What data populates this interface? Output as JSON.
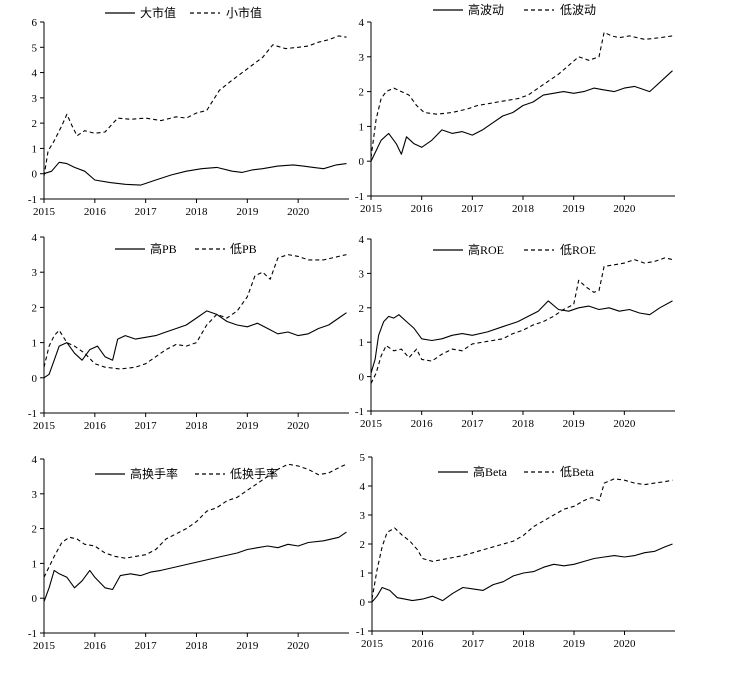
{
  "colors": {
    "line": "#000000",
    "axis": "#000000",
    "background": "#ffffff"
  },
  "chart_data": [
    {
      "type": "line",
      "x_ticks": [
        "2015",
        "2016",
        "2017",
        "2018",
        "2019",
        "2020"
      ],
      "ylim": [
        -1,
        6
      ],
      "y_ticks": [
        "-1",
        "0",
        "1",
        "2",
        "3",
        "4",
        "5",
        "6"
      ],
      "legend_position": "top",
      "series": [
        {
          "name": "大市值",
          "style": "solid",
          "x": [
            2015.0,
            2015.15,
            2015.3,
            2015.45,
            2015.6,
            2015.8,
            2016.0,
            2016.3,
            2016.6,
            2016.9,
            2017.2,
            2017.5,
            2017.8,
            2018.1,
            2018.4,
            2018.7,
            2018.9,
            2019.1,
            2019.3,
            2019.6,
            2019.9,
            2020.1,
            2020.3,
            2020.5,
            2020.75,
            2020.95
          ],
          "values": [
            0.0,
            0.1,
            0.45,
            0.4,
            0.25,
            0.1,
            -0.25,
            -0.35,
            -0.42,
            -0.45,
            -0.25,
            -0.05,
            0.1,
            0.2,
            0.25,
            0.1,
            0.05,
            0.15,
            0.2,
            0.3,
            0.35,
            0.3,
            0.25,
            0.2,
            0.35,
            0.4
          ]
        },
        {
          "name": "小市值",
          "style": "dashed",
          "x": [
            2015.0,
            2015.08,
            2015.2,
            2015.35,
            2015.45,
            2015.55,
            2015.65,
            2015.8,
            2016.0,
            2016.2,
            2016.45,
            2016.7,
            2017.0,
            2017.3,
            2017.6,
            2017.8,
            2018.0,
            2018.2,
            2018.45,
            2018.7,
            2018.9,
            2019.1,
            2019.3,
            2019.5,
            2019.75,
            2020.0,
            2020.2,
            2020.4,
            2020.6,
            2020.8,
            2020.95
          ],
          "values": [
            -0.1,
            0.9,
            1.3,
            1.9,
            2.35,
            1.9,
            1.5,
            1.7,
            1.6,
            1.65,
            2.2,
            2.15,
            2.2,
            2.1,
            2.25,
            2.2,
            2.4,
            2.5,
            3.3,
            3.7,
            4.0,
            4.3,
            4.6,
            5.1,
            4.95,
            5.0,
            5.05,
            5.2,
            5.3,
            5.45,
            5.4
          ]
        }
      ]
    },
    {
      "type": "line",
      "x_ticks": [
        "2015",
        "2016",
        "2017",
        "2018",
        "2019",
        "2020"
      ],
      "ylim": [
        -1,
        4
      ],
      "y_ticks": [
        "-1",
        "0",
        "1",
        "2",
        "3",
        "4"
      ],
      "legend_position": "top",
      "series": [
        {
          "name": "高波动",
          "style": "solid",
          "x": [
            2015.0,
            2015.1,
            2015.2,
            2015.35,
            2015.5,
            2015.6,
            2015.7,
            2015.85,
            2016.0,
            2016.2,
            2016.4,
            2016.6,
            2016.8,
            2017.0,
            2017.2,
            2017.4,
            2017.6,
            2017.8,
            2018.0,
            2018.2,
            2018.4,
            2018.6,
            2018.8,
            2019.0,
            2019.2,
            2019.4,
            2019.6,
            2019.8,
            2020.0,
            2020.2,
            2020.5,
            2020.8,
            2020.95
          ],
          "values": [
            0.0,
            0.3,
            0.6,
            0.8,
            0.5,
            0.2,
            0.7,
            0.5,
            0.4,
            0.6,
            0.9,
            0.8,
            0.85,
            0.75,
            0.9,
            1.1,
            1.3,
            1.4,
            1.6,
            1.7,
            1.9,
            1.95,
            2.0,
            1.95,
            2.0,
            2.1,
            2.05,
            2.0,
            2.1,
            2.15,
            2.0,
            2.4,
            2.6
          ]
        },
        {
          "name": "低波动",
          "style": "dashed",
          "x": [
            2015.0,
            2015.1,
            2015.2,
            2015.3,
            2015.45,
            2015.6,
            2015.75,
            2015.9,
            2016.05,
            2016.3,
            2016.6,
            2016.9,
            2017.1,
            2017.3,
            2017.5,
            2017.7,
            2017.9,
            2018.1,
            2018.3,
            2018.5,
            2018.7,
            2018.9,
            2019.1,
            2019.3,
            2019.5,
            2019.6,
            2019.75,
            2019.9,
            2020.1,
            2020.4,
            2020.7,
            2020.95
          ],
          "values": [
            0.1,
            1.2,
            1.8,
            2.0,
            2.1,
            2.0,
            1.9,
            1.6,
            1.4,
            1.35,
            1.4,
            1.5,
            1.6,
            1.65,
            1.7,
            1.75,
            1.8,
            1.9,
            2.1,
            2.3,
            2.5,
            2.75,
            3.0,
            2.9,
            3.0,
            3.7,
            3.6,
            3.55,
            3.6,
            3.5,
            3.55,
            3.6
          ]
        }
      ]
    },
    {
      "type": "line",
      "x_ticks": [
        "2015",
        "2016",
        "2017",
        "2018",
        "2019",
        "2020"
      ],
      "ylim": [
        -1,
        4
      ],
      "y_ticks": [
        "-1",
        "0",
        "1",
        "2",
        "3",
        "4"
      ],
      "legend_position": "top",
      "series": [
        {
          "name": "高PB",
          "style": "solid",
          "x": [
            2015.0,
            2015.1,
            2015.2,
            2015.3,
            2015.45,
            2015.6,
            2015.75,
            2015.9,
            2016.05,
            2016.2,
            2016.35,
            2016.45,
            2016.6,
            2016.8,
            2017.0,
            2017.2,
            2017.4,
            2017.6,
            2017.8,
            2018.0,
            2018.2,
            2018.4,
            2018.6,
            2018.8,
            2019.0,
            2019.2,
            2019.4,
            2019.6,
            2019.8,
            2020.0,
            2020.2,
            2020.4,
            2020.6,
            2020.8,
            2020.95
          ],
          "values": [
            0.0,
            0.1,
            0.5,
            0.9,
            1.0,
            0.7,
            0.5,
            0.8,
            0.9,
            0.6,
            0.5,
            1.1,
            1.2,
            1.1,
            1.15,
            1.2,
            1.3,
            1.4,
            1.5,
            1.7,
            1.9,
            1.8,
            1.6,
            1.5,
            1.45,
            1.55,
            1.4,
            1.25,
            1.3,
            1.2,
            1.25,
            1.4,
            1.5,
            1.7,
            1.85
          ]
        },
        {
          "name": "低PB",
          "style": "dashed",
          "x": [
            2015.0,
            2015.1,
            2015.2,
            2015.3,
            2015.45,
            2015.6,
            2015.8,
            2016.0,
            2016.2,
            2016.5,
            2016.8,
            2017.0,
            2017.2,
            2017.4,
            2017.6,
            2017.8,
            2018.0,
            2018.2,
            2018.4,
            2018.6,
            2018.8,
            2019.0,
            2019.15,
            2019.3,
            2019.45,
            2019.6,
            2019.8,
            2020.0,
            2020.2,
            2020.5,
            2020.8,
            2020.95
          ],
          "values": [
            0.3,
            0.9,
            1.2,
            1.35,
            1.0,
            0.9,
            0.7,
            0.4,
            0.3,
            0.25,
            0.3,
            0.4,
            0.6,
            0.8,
            0.95,
            0.9,
            1.0,
            1.5,
            1.8,
            1.7,
            1.9,
            2.3,
            2.9,
            3.0,
            2.8,
            3.4,
            3.5,
            3.45,
            3.35,
            3.35,
            3.45,
            3.5
          ]
        }
      ]
    },
    {
      "type": "line",
      "x_ticks": [
        "2015",
        "2016",
        "2017",
        "2018",
        "2019",
        "2020"
      ],
      "ylim": [
        -1,
        4
      ],
      "y_ticks": [
        "-1",
        "0",
        "1",
        "2",
        "3",
        "4"
      ],
      "legend_position": "top",
      "series": [
        {
          "name": "高ROE",
          "style": "solid",
          "x": [
            2015.0,
            2015.08,
            2015.15,
            2015.25,
            2015.35,
            2015.45,
            2015.55,
            2015.7,
            2015.85,
            2016.0,
            2016.2,
            2016.4,
            2016.6,
            2016.8,
            2017.0,
            2017.3,
            2017.6,
            2017.9,
            2018.1,
            2018.3,
            2018.5,
            2018.7,
            2018.9,
            2019.1,
            2019.3,
            2019.5,
            2019.7,
            2019.9,
            2020.1,
            2020.3,
            2020.5,
            2020.7,
            2020.95
          ],
          "values": [
            0.1,
            0.5,
            1.2,
            1.6,
            1.75,
            1.7,
            1.8,
            1.6,
            1.4,
            1.1,
            1.05,
            1.1,
            1.2,
            1.25,
            1.2,
            1.3,
            1.45,
            1.6,
            1.75,
            1.9,
            2.2,
            1.95,
            1.9,
            2.0,
            2.05,
            1.95,
            2.0,
            1.9,
            1.95,
            1.85,
            1.8,
            2.0,
            2.2
          ]
        },
        {
          "name": "低ROE",
          "style": "dashed",
          "x": [
            2015.0,
            2015.1,
            2015.2,
            2015.3,
            2015.45,
            2015.6,
            2015.75,
            2015.9,
            2016.0,
            2016.2,
            2016.4,
            2016.6,
            2016.8,
            2017.0,
            2017.2,
            2017.4,
            2017.6,
            2017.8,
            2018.0,
            2018.2,
            2018.4,
            2018.6,
            2018.8,
            2019.0,
            2019.1,
            2019.25,
            2019.4,
            2019.5,
            2019.6,
            2019.8,
            2020.0,
            2020.2,
            2020.4,
            2020.6,
            2020.8,
            2020.95
          ],
          "values": [
            -0.2,
            0.1,
            0.6,
            0.9,
            0.75,
            0.8,
            0.55,
            0.8,
            0.5,
            0.45,
            0.65,
            0.8,
            0.75,
            0.95,
            1.0,
            1.05,
            1.1,
            1.25,
            1.35,
            1.5,
            1.6,
            1.75,
            1.95,
            2.1,
            2.8,
            2.6,
            2.45,
            2.5,
            3.2,
            3.25,
            3.3,
            3.4,
            3.3,
            3.35,
            3.45,
            3.4
          ]
        }
      ]
    },
    {
      "type": "line",
      "x_ticks": [
        "2015",
        "2016",
        "2017",
        "2018",
        "2019",
        "2020"
      ],
      "ylim": [
        -1,
        4
      ],
      "y_ticks": [
        "-1",
        "0",
        "1",
        "2",
        "3",
        "4"
      ],
      "legend_position": "top",
      "series": [
        {
          "name": "高换手率",
          "style": "solid",
          "x": [
            2015.0,
            2015.1,
            2015.2,
            2015.3,
            2015.45,
            2015.6,
            2015.75,
            2015.9,
            2016.0,
            2016.2,
            2016.35,
            2016.5,
            2016.7,
            2016.9,
            2017.1,
            2017.3,
            2017.6,
            2017.9,
            2018.2,
            2018.5,
            2018.8,
            2019.0,
            2019.2,
            2019.4,
            2019.6,
            2019.8,
            2020.0,
            2020.2,
            2020.5,
            2020.8,
            2020.95
          ],
          "values": [
            -0.1,
            0.3,
            0.8,
            0.7,
            0.6,
            0.3,
            0.5,
            0.8,
            0.6,
            0.3,
            0.25,
            0.65,
            0.7,
            0.65,
            0.75,
            0.8,
            0.9,
            1.0,
            1.1,
            1.2,
            1.3,
            1.4,
            1.45,
            1.5,
            1.45,
            1.55,
            1.5,
            1.6,
            1.65,
            1.75,
            1.9
          ]
        },
        {
          "name": "低换手率",
          "style": "dashed",
          "x": [
            2015.0,
            2015.1,
            2015.2,
            2015.35,
            2015.5,
            2015.65,
            2015.8,
            2016.0,
            2016.2,
            2016.4,
            2016.6,
            2016.8,
            2017.0,
            2017.2,
            2017.4,
            2017.6,
            2017.8,
            2018.0,
            2018.2,
            2018.4,
            2018.6,
            2018.8,
            2019.0,
            2019.2,
            2019.4,
            2019.6,
            2019.8,
            2020.0,
            2020.2,
            2020.4,
            2020.6,
            2020.8,
            2020.95
          ],
          "values": [
            0.6,
            0.9,
            1.2,
            1.6,
            1.75,
            1.7,
            1.55,
            1.5,
            1.3,
            1.2,
            1.15,
            1.2,
            1.25,
            1.4,
            1.7,
            1.85,
            2.0,
            2.2,
            2.5,
            2.6,
            2.8,
            2.9,
            3.1,
            3.3,
            3.5,
            3.7,
            3.85,
            3.8,
            3.7,
            3.55,
            3.6,
            3.75,
            3.85
          ]
        }
      ]
    },
    {
      "type": "line",
      "x_ticks": [
        "2015",
        "2016",
        "2017",
        "2018",
        "2019",
        "2020"
      ],
      "ylim": [
        -1,
        5
      ],
      "y_ticks": [
        "-1",
        "0",
        "1",
        "2",
        "3",
        "4",
        "5"
      ],
      "legend_position": "top",
      "series": [
        {
          "name": "高Beta",
          "style": "solid",
          "x": [
            2015.0,
            2015.1,
            2015.2,
            2015.35,
            2015.5,
            2015.65,
            2015.8,
            2016.0,
            2016.2,
            2016.4,
            2016.6,
            2016.8,
            2017.0,
            2017.2,
            2017.4,
            2017.6,
            2017.8,
            2018.0,
            2018.2,
            2018.4,
            2018.6,
            2018.8,
            2019.0,
            2019.2,
            2019.4,
            2019.6,
            2019.8,
            2020.0,
            2020.2,
            2020.4,
            2020.6,
            2020.8,
            2020.95
          ],
          "values": [
            0.0,
            0.2,
            0.5,
            0.4,
            0.15,
            0.1,
            0.05,
            0.1,
            0.2,
            0.05,
            0.3,
            0.5,
            0.45,
            0.4,
            0.6,
            0.7,
            0.9,
            1.0,
            1.05,
            1.2,
            1.3,
            1.25,
            1.3,
            1.4,
            1.5,
            1.55,
            1.6,
            1.55,
            1.6,
            1.7,
            1.75,
            1.9,
            2.0
          ]
        },
        {
          "name": "低Beta",
          "style": "dashed",
          "x": [
            2015.0,
            2015.1,
            2015.2,
            2015.3,
            2015.45,
            2015.6,
            2015.75,
            2015.9,
            2016.0,
            2016.2,
            2016.5,
            2016.8,
            2017.0,
            2017.2,
            2017.4,
            2017.6,
            2017.8,
            2018.0,
            2018.2,
            2018.4,
            2018.6,
            2018.8,
            2019.0,
            2019.2,
            2019.35,
            2019.5,
            2019.6,
            2019.8,
            2020.0,
            2020.2,
            2020.4,
            2020.6,
            2020.8,
            2020.95
          ],
          "values": [
            0.1,
            1.1,
            1.9,
            2.4,
            2.55,
            2.3,
            2.1,
            1.8,
            1.5,
            1.4,
            1.5,
            1.6,
            1.7,
            1.8,
            1.9,
            2.0,
            2.1,
            2.3,
            2.6,
            2.8,
            3.0,
            3.2,
            3.3,
            3.5,
            3.6,
            3.5,
            4.1,
            4.25,
            4.2,
            4.1,
            4.05,
            4.1,
            4.15,
            4.2
          ]
        }
      ]
    }
  ]
}
